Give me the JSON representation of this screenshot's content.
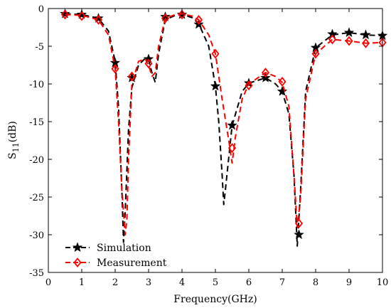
{
  "chart_data": {
    "type": "line",
    "xlabel": "Frequency(GHz)",
    "ylabel": "S11(dB)",
    "ylabel_main": "S",
    "ylabel_sub": "11",
    "ylabel_unit": "(dB)",
    "xlim": [
      0,
      10
    ],
    "ylim": [
      -35,
      0
    ],
    "xticks": [
      0,
      1,
      2,
      3,
      4,
      5,
      6,
      7,
      8,
      9,
      10
    ],
    "yticks": [
      0,
      -5,
      -10,
      -15,
      -20,
      -25,
      -30,
      -35
    ],
    "grid": false,
    "legend_position": "bottom-left",
    "series": [
      {
        "name": "Simulation",
        "color": "#000000",
        "line_style": "dashed",
        "marker": "star",
        "curve": [
          [
            0.5,
            -0.7
          ],
          [
            1.0,
            -0.8
          ],
          [
            1.5,
            -1.3
          ],
          [
            1.8,
            -3.0
          ],
          [
            2.0,
            -7.0
          ],
          [
            2.1,
            -13.0
          ],
          [
            2.2,
            -24.0
          ],
          [
            2.25,
            -31.0
          ],
          [
            2.3,
            -27.0
          ],
          [
            2.4,
            -16.0
          ],
          [
            2.5,
            -10.5
          ],
          [
            2.7,
            -7.5
          ],
          [
            2.9,
            -6.6
          ],
          [
            3.0,
            -6.8
          ],
          [
            3.1,
            -8.5
          ],
          [
            3.2,
            -9.8
          ],
          [
            3.3,
            -6.0
          ],
          [
            3.5,
            -1.5
          ],
          [
            3.8,
            -0.9
          ],
          [
            4.0,
            -0.8
          ],
          [
            4.3,
            -1.2
          ],
          [
            4.5,
            -2.0
          ],
          [
            4.8,
            -5.0
          ],
          [
            5.0,
            -10.3
          ],
          [
            5.1,
            -15.0
          ],
          [
            5.2,
            -22.0
          ],
          [
            5.25,
            -26.0
          ],
          [
            5.3,
            -24.0
          ],
          [
            5.5,
            -15.5
          ],
          [
            5.8,
            -11.0
          ],
          [
            6.0,
            -9.9
          ],
          [
            6.5,
            -9.2
          ],
          [
            6.8,
            -10.0
          ],
          [
            7.0,
            -11.0
          ],
          [
            7.2,
            -14.0
          ],
          [
            7.35,
            -22.0
          ],
          [
            7.45,
            -31.5
          ],
          [
            7.55,
            -24.0
          ],
          [
            7.7,
            -11.0
          ],
          [
            8.0,
            -5.2
          ],
          [
            8.5,
            -3.5
          ],
          [
            9.0,
            -3.2
          ],
          [
            9.5,
            -3.5
          ],
          [
            10.0,
            -3.6
          ]
        ],
        "markers": [
          [
            0.5,
            -0.7
          ],
          [
            1.0,
            -0.8
          ],
          [
            1.5,
            -1.3
          ],
          [
            2.0,
            -7.2
          ],
          [
            2.5,
            -9.2
          ],
          [
            3.0,
            -6.7
          ],
          [
            3.5,
            -1.1
          ],
          [
            4.0,
            -0.8
          ],
          [
            4.5,
            -2.1
          ],
          [
            5.0,
            -10.3
          ],
          [
            5.5,
            -15.5
          ],
          [
            6.0,
            -9.9
          ],
          [
            6.5,
            -9.2
          ],
          [
            7.0,
            -11.0
          ],
          [
            7.5,
            -30.0
          ],
          [
            8.0,
            -5.2
          ],
          [
            8.5,
            -3.4
          ],
          [
            9.0,
            -3.2
          ],
          [
            9.5,
            -3.5
          ],
          [
            10.0,
            -3.6
          ]
        ]
      },
      {
        "name": "Measurement",
        "color": "#ff0000",
        "line_style": "dashed",
        "marker": "diamond",
        "curve": [
          [
            0.5,
            -0.8
          ],
          [
            1.0,
            -0.9
          ],
          [
            1.5,
            -1.5
          ],
          [
            1.8,
            -3.5
          ],
          [
            2.0,
            -8.0
          ],
          [
            2.1,
            -15.0
          ],
          [
            2.2,
            -24.0
          ],
          [
            2.3,
            -30.0
          ],
          [
            2.35,
            -28.0
          ],
          [
            2.4,
            -20.0
          ],
          [
            2.5,
            -10.0
          ],
          [
            2.7,
            -7.0
          ],
          [
            2.9,
            -6.7
          ],
          [
            3.0,
            -7.5
          ],
          [
            3.1,
            -9.0
          ],
          [
            3.2,
            -8.5
          ],
          [
            3.3,
            -5.0
          ],
          [
            3.5,
            -1.3
          ],
          [
            3.8,
            -0.8
          ],
          [
            4.0,
            -0.7
          ],
          [
            4.3,
            -1.0
          ],
          [
            4.5,
            -1.5
          ],
          [
            4.8,
            -3.5
          ],
          [
            5.0,
            -6.0
          ],
          [
            5.2,
            -12.0
          ],
          [
            5.4,
            -17.5
          ],
          [
            5.5,
            -20.5
          ],
          [
            5.6,
            -17.0
          ],
          [
            5.8,
            -12.0
          ],
          [
            6.0,
            -10.0
          ],
          [
            6.5,
            -8.5
          ],
          [
            6.8,
            -9.0
          ],
          [
            7.0,
            -9.8
          ],
          [
            7.2,
            -13.0
          ],
          [
            7.35,
            -22.0
          ],
          [
            7.45,
            -29.0
          ],
          [
            7.55,
            -25.0
          ],
          [
            7.7,
            -12.0
          ],
          [
            8.0,
            -6.0
          ],
          [
            8.5,
            -4.1
          ],
          [
            9.0,
            -4.3
          ],
          [
            9.5,
            -4.6
          ],
          [
            10.0,
            -4.5
          ]
        ],
        "markers": [
          [
            0.5,
            -0.8
          ],
          [
            1.0,
            -1.0
          ],
          [
            1.5,
            -1.5
          ],
          [
            2.0,
            -8.0
          ],
          [
            2.5,
            -9.0
          ],
          [
            3.0,
            -7.3
          ],
          [
            3.5,
            -1.3
          ],
          [
            4.0,
            -0.8
          ],
          [
            4.5,
            -1.5
          ],
          [
            5.0,
            -6.0
          ],
          [
            5.5,
            -18.5
          ],
          [
            6.0,
            -10.2
          ],
          [
            6.5,
            -8.5
          ],
          [
            7.0,
            -9.7
          ],
          [
            7.5,
            -28.5
          ],
          [
            8.0,
            -6.0
          ],
          [
            8.5,
            -4.1
          ],
          [
            9.0,
            -4.3
          ],
          [
            9.5,
            -4.6
          ],
          [
            10.0,
            -4.5
          ]
        ]
      }
    ]
  }
}
